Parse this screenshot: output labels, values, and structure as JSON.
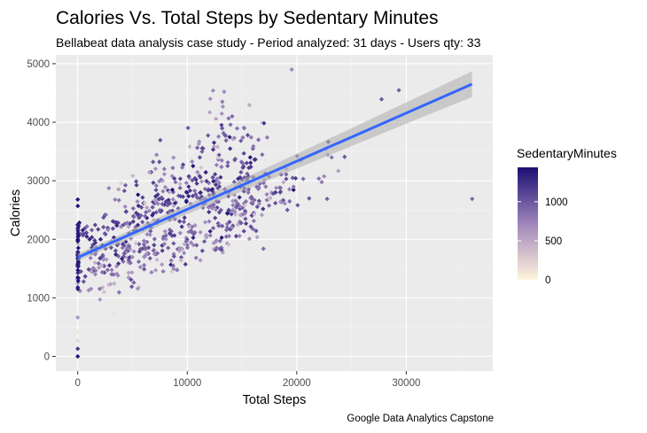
{
  "chart_data": {
    "type": "scatter",
    "title": "Calories Vs. Total Steps by Sedentary Minutes",
    "subtitle": "Bellabeat data analysis case study - Period analyzed: 31 days - Users qty: 33",
    "caption": "Google Data Analytics Capstone",
    "xlabel": "Total Steps",
    "ylabel": "Calories",
    "xlim": [
      -2000,
      37900
    ],
    "ylim": [
      -250,
      5150
    ],
    "x_ticks": [
      0,
      10000,
      20000,
      30000
    ],
    "x_tick_labels": [
      "0",
      "10000",
      "20000",
      "30000"
    ],
    "y_ticks": [
      0,
      1000,
      2000,
      3000,
      4000,
      5000
    ],
    "y_tick_labels": [
      "0",
      "1000",
      "2000",
      "3000",
      "4000",
      "5000"
    ],
    "grid": true,
    "panel_background": "#ebebeb",
    "legend": {
      "title": "SedentaryMinutes",
      "position": "right",
      "min": 0,
      "max": 1440,
      "breaks": [
        0,
        500,
        1000
      ],
      "break_labels": [
        "0",
        "500",
        "1000"
      ],
      "color_low": "#fff5dc",
      "color_mid": "#9e86bb",
      "color_high": "#1c0f73"
    },
    "trend_line": {
      "method": "lm",
      "color": "#3366ff",
      "band_color": "#b3b3b3",
      "x0": 0,
      "y0": 1690,
      "x1": 36000,
      "y1": 4650,
      "band_width_start": 60,
      "band_width_end": 220
    },
    "points": [
      {
        "x": 36019,
        "y": 2690,
        "s": 900
      },
      {
        "x": 29326,
        "y": 4547,
        "s": 950
      },
      {
        "x": 27745,
        "y": 4392,
        "s": 1000
      },
      {
        "x": 19542,
        "y": 4900,
        "s": 700
      },
      {
        "x": 22770,
        "y": 2690,
        "s": 950
      },
      {
        "x": 21129,
        "y": 2700,
        "s": 1000
      },
      {
        "x": 20031,
        "y": 3422,
        "s": 900
      },
      {
        "x": 23186,
        "y": 3400,
        "s": 850
      },
      {
        "x": 17298,
        "y": 3740,
        "s": 800
      },
      {
        "x": 12357,
        "y": 4540,
        "s": 700
      },
      {
        "x": 13372,
        "y": 4520,
        "s": 700
      },
      {
        "x": 12100,
        "y": 4400,
        "s": 650
      },
      {
        "x": 13200,
        "y": 4350,
        "s": 800
      },
      {
        "x": 14100,
        "y": 4100,
        "s": 900
      },
      {
        "x": 16500,
        "y": 3700,
        "s": 900
      },
      {
        "x": 0,
        "y": 0,
        "s": 1440
      },
      {
        "x": 0,
        "y": 130,
        "s": 1200
      },
      {
        "x": 0,
        "y": 270,
        "s": 200
      },
      {
        "x": 0,
        "y": 420,
        "s": 100
      },
      {
        "x": 0,
        "y": 665,
        "s": 600
      },
      {
        "x": 0,
        "y": 2680,
        "s": 1440
      },
      {
        "x": 3900,
        "y": 930,
        "s": 60
      },
      {
        "x": 3200,
        "y": 740,
        "s": 120
      },
      {
        "x": 2400,
        "y": 1100,
        "s": 350
      },
      {
        "x": 1000,
        "y": 1130,
        "s": 700
      }
    ],
    "clusters": [
      {
        "x0": 200,
        "y0": 2050,
        "x1": 16500,
        "y1": 3250,
        "n": 160,
        "dx": 1200,
        "dy": 130,
        "s_mean": 1150,
        "s_sd": 160
      },
      {
        "x0": 300,
        "y0": 1520,
        "x1": 19000,
        "y1": 2850,
        "n": 220,
        "dx": 2000,
        "dy": 170,
        "s_mean": 920,
        "s_sd": 200
      },
      {
        "x0": 500,
        "y0": 1150,
        "x1": 16000,
        "y1": 2350,
        "n": 140,
        "dx": 2200,
        "dy": 190,
        "s_mean": 780,
        "s_sd": 260
      },
      {
        "x0": 4000,
        "y0": 2350,
        "x1": 15500,
        "y1": 4000,
        "n": 130,
        "dx": 2200,
        "dy": 260,
        "s_mean": 850,
        "s_sd": 240
      },
      {
        "x0": 14000,
        "y0": 2550,
        "x1": 24000,
        "y1": 3400,
        "n": 30,
        "dx": 2200,
        "dy": 280,
        "s_mean": 800,
        "s_sd": 180
      },
      {
        "x0": 0,
        "y0": 1350,
        "x1": 0,
        "y1": 2100,
        "n": 45,
        "dx": 40,
        "dy": 200,
        "s_mean": 1380,
        "s_sd": 60
      }
    ]
  }
}
